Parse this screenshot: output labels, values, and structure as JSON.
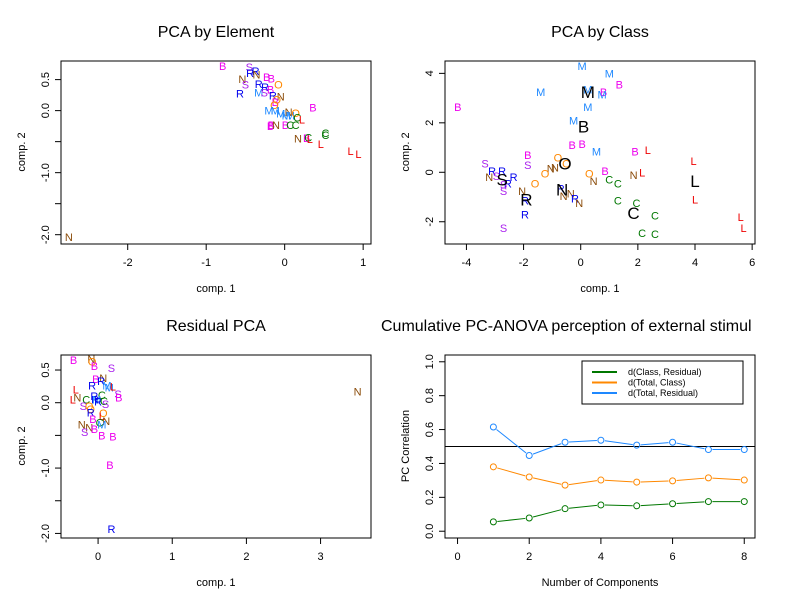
{
  "colors": {
    "B": "#ee00ee",
    "C": "#007700",
    "L": "#ee0000",
    "M": "#1e88ff",
    "N": "#8b4c0a",
    "O": "#ff8800",
    "R": "#0000ee",
    "S": "#aa22ee",
    "centroid": "#000000",
    "refline": "#000000"
  },
  "chart_data": [
    {
      "type": "scatter",
      "title": "PCA by Element",
      "xlabel": "comp. 1",
      "ylabel": "comp. 2",
      "xlim": [
        -2.85,
        1.1
      ],
      "ylim": [
        -2.15,
        0.8
      ],
      "xticks": [
        -2,
        -1,
        0,
        1
      ],
      "yticks": [
        0.5,
        0.0,
        -0.5,
        -1.0,
        -1.5,
        -2.0
      ],
      "ytick_labels": [
        "0.5",
        "0.0",
        "",
        "-1.0",
        "",
        "-2.0"
      ],
      "points": [
        {
          "label": "B",
          "x": -0.79,
          "y": 0.72
        },
        {
          "label": "S",
          "x": -0.45,
          "y": 0.7
        },
        {
          "label": "R",
          "x": -0.44,
          "y": 0.61
        },
        {
          "label": "R",
          "x": -0.37,
          "y": 0.64
        },
        {
          "label": "N",
          "x": -0.36,
          "y": 0.58
        },
        {
          "label": "N",
          "x": -0.54,
          "y": 0.51
        },
        {
          "label": "S",
          "x": -0.5,
          "y": 0.42
        },
        {
          "label": "R",
          "x": -0.57,
          "y": 0.28
        },
        {
          "label": "B",
          "x": -0.23,
          "y": 0.54
        },
        {
          "label": "B",
          "x": -0.17,
          "y": 0.52
        },
        {
          "label": "O",
          "x": -0.08,
          "y": 0.42
        },
        {
          "label": "R",
          "x": -0.33,
          "y": 0.43
        },
        {
          "label": "R",
          "x": -0.25,
          "y": 0.38
        },
        {
          "label": "M",
          "x": -0.33,
          "y": 0.29
        },
        {
          "label": "S",
          "x": -0.26,
          "y": 0.29
        },
        {
          "label": "B",
          "x": -0.18,
          "y": 0.34
        },
        {
          "label": "R",
          "x": -0.15,
          "y": 0.24
        },
        {
          "label": "N",
          "x": -0.05,
          "y": 0.23
        },
        {
          "label": "O",
          "x": -0.1,
          "y": 0.18
        },
        {
          "label": "B",
          "x": -0.12,
          "y": 0.14
        },
        {
          "label": "O",
          "x": -0.13,
          "y": 0.09
        },
        {
          "label": "M",
          "x": -0.2,
          "y": 0.0
        },
        {
          "label": "M",
          "x": -0.12,
          "y": 0.0
        },
        {
          "label": "M",
          "x": -0.05,
          "y": -0.05
        },
        {
          "label": "N",
          "x": 0.05,
          "y": -0.02
        },
        {
          "label": "M",
          "x": 0.02,
          "y": -0.08
        },
        {
          "label": "M",
          "x": 0.07,
          "y": -0.08
        },
        {
          "label": "O",
          "x": 0.14,
          "y": -0.04
        },
        {
          "label": "C",
          "x": 0.16,
          "y": -0.11
        },
        {
          "label": "L",
          "x": 0.22,
          "y": -0.14
        },
        {
          "label": "C",
          "x": 0.14,
          "y": -0.23
        },
        {
          "label": "B",
          "x": -0.17,
          "y": -0.23
        },
        {
          "label": "B",
          "x": -0.18,
          "y": -0.25
        },
        {
          "label": "N",
          "x": -0.11,
          "y": -0.23
        },
        {
          "label": "B",
          "x": 0.01,
          "y": -0.23
        },
        {
          "label": "C",
          "x": 0.07,
          "y": -0.23
        },
        {
          "label": "B",
          "x": 0.36,
          "y": 0.05
        },
        {
          "label": "N",
          "x": 0.17,
          "y": -0.45
        },
        {
          "label": "B",
          "x": 0.28,
          "y": -0.44
        },
        {
          "label": "C",
          "x": 0.3,
          "y": -0.43
        },
        {
          "label": "L",
          "x": 0.32,
          "y": -0.46
        },
        {
          "label": "L",
          "x": 0.46,
          "y": -0.54
        },
        {
          "label": "C",
          "x": 0.52,
          "y": -0.36
        },
        {
          "label": "C",
          "x": 0.52,
          "y": -0.39
        },
        {
          "label": "L",
          "x": 0.84,
          "y": -0.65
        },
        {
          "label": "L",
          "x": 0.94,
          "y": -0.7
        },
        {
          "label": "N",
          "x": -2.75,
          "y": -2.04
        }
      ]
    },
    {
      "type": "scatter",
      "title": "PCA by Class",
      "xlabel": "comp. 1",
      "ylabel": "comp. 2",
      "xlim": [
        -4.75,
        6.1
      ],
      "ylim": [
        -2.9,
        4.5
      ],
      "xticks": [
        -4,
        -2,
        0,
        2,
        4,
        6
      ],
      "yticks": [
        4,
        2,
        0,
        -2
      ],
      "points": [
        {
          "label": "M",
          "x": 0.05,
          "y": 4.3
        },
        {
          "label": "M",
          "x": 1.0,
          "y": 4.0
        },
        {
          "label": "B",
          "x": 1.35,
          "y": 3.55
        },
        {
          "label": "M",
          "x": -1.4,
          "y": 3.25
        },
        {
          "label": "M",
          "x": 0.25,
          "y": 3.35
        },
        {
          "label": "B",
          "x": 0.8,
          "y": 3.25
        },
        {
          "label": "M",
          "x": 0.75,
          "y": 3.15
        },
        {
          "label": "M",
          "x": 0.25,
          "y": 2.65
        },
        {
          "label": "M",
          "x": -0.25,
          "y": 2.1
        },
        {
          "label": "B",
          "x": -4.3,
          "y": 2.65
        },
        {
          "label": "B",
          "x": -0.3,
          "y": 1.1
        },
        {
          "label": "B",
          "x": 0.05,
          "y": 1.15
        },
        {
          "label": "M",
          "x": 0.55,
          "y": 0.85
        },
        {
          "label": "B",
          "x": 1.9,
          "y": 0.85
        },
        {
          "label": "L",
          "x": 2.35,
          "y": 0.9
        },
        {
          "label": "B",
          "x": -1.85,
          "y": 0.7
        },
        {
          "label": "S",
          "x": -1.85,
          "y": 0.3
        },
        {
          "label": "S",
          "x": -3.35,
          "y": 0.35
        },
        {
          "label": "R",
          "x": -3.1,
          "y": 0.05
        },
        {
          "label": "R",
          "x": -2.75,
          "y": 0.05
        },
        {
          "label": "N",
          "x": -3.2,
          "y": -0.2
        },
        {
          "label": "S",
          "x": -2.95,
          "y": -0.15
        },
        {
          "label": "R",
          "x": -2.35,
          "y": -0.2
        },
        {
          "label": "R",
          "x": -2.55,
          "y": -0.45
        },
        {
          "label": "S",
          "x": -2.7,
          "y": -0.5
        },
        {
          "label": "S",
          "x": -2.7,
          "y": -0.75
        },
        {
          "label": "O",
          "x": -0.8,
          "y": 0.6
        },
        {
          "label": "O",
          "x": -0.5,
          "y": 0.35
        },
        {
          "label": "N",
          "x": -1.05,
          "y": 0.15
        },
        {
          "label": "N",
          "x": -0.9,
          "y": 0.2
        },
        {
          "label": "O",
          "x": -1.25,
          "y": -0.05
        },
        {
          "label": "O",
          "x": -1.6,
          "y": -0.45
        },
        {
          "label": "N",
          "x": -2.05,
          "y": -0.75
        },
        {
          "label": "R",
          "x": -1.95,
          "y": -1.15
        },
        {
          "label": "R",
          "x": -1.95,
          "y": -1.7
        },
        {
          "label": "S",
          "x": -2.7,
          "y": -2.25
        },
        {
          "label": "R",
          "x": -0.7,
          "y": -0.65
        },
        {
          "label": "N",
          "x": -0.6,
          "y": -0.95
        },
        {
          "label": "N",
          "x": -0.35,
          "y": -0.85
        },
        {
          "label": "R",
          "x": -0.2,
          "y": -1.05
        },
        {
          "label": "N",
          "x": -0.05,
          "y": -1.25
        },
        {
          "label": "O",
          "x": 0.3,
          "y": -0.05
        },
        {
          "label": "N",
          "x": 0.45,
          "y": -0.35
        },
        {
          "label": "B",
          "x": 0.85,
          "y": 0.05
        },
        {
          "label": "C",
          "x": 1.0,
          "y": -0.3
        },
        {
          "label": "C",
          "x": 1.3,
          "y": -0.45
        },
        {
          "label": "N",
          "x": 1.85,
          "y": -0.1
        },
        {
          "label": "L",
          "x": 2.15,
          "y": 0.0
        },
        {
          "label": "C",
          "x": 1.3,
          "y": -1.15
        },
        {
          "label": "C",
          "x": 1.95,
          "y": -1.25
        },
        {
          "label": "C",
          "x": 2.6,
          "y": -1.75
        },
        {
          "label": "C",
          "x": 2.15,
          "y": -2.45
        },
        {
          "label": "C",
          "x": 2.6,
          "y": -2.5
        },
        {
          "label": "L",
          "x": 3.95,
          "y": 0.45
        },
        {
          "label": "L",
          "x": 4.0,
          "y": -1.1
        },
        {
          "label": "L",
          "x": 5.6,
          "y": -1.8
        },
        {
          "label": "L",
          "x": 5.7,
          "y": -2.25
        }
      ],
      "centroids": [
        {
          "label": "M",
          "x": 0.25,
          "y": 3.25
        },
        {
          "label": "B",
          "x": 0.1,
          "y": 1.85
        },
        {
          "label": "O",
          "x": -0.55,
          "y": 0.35
        },
        {
          "label": "S",
          "x": -2.75,
          "y": -0.3
        },
        {
          "label": "N",
          "x": -0.65,
          "y": -0.7
        },
        {
          "label": "R",
          "x": -1.9,
          "y": -1.1
        },
        {
          "label": "C",
          "x": 1.85,
          "y": -1.65
        },
        {
          "label": "L",
          "x": 4.0,
          "y": -0.35
        }
      ]
    },
    {
      "type": "scatter",
      "title": "Residual PCA",
      "xlabel": "comp. 1",
      "ylabel": "comp. 2",
      "xlim": [
        -0.5,
        3.68
      ],
      "ylim": [
        -2.07,
        0.73
      ],
      "xticks": [
        0,
        1,
        2,
        3
      ],
      "yticks": [
        0.5,
        0.0,
        -0.5,
        -1.0,
        -1.5,
        -2.0
      ],
      "ytick_labels": [
        "0.5",
        "0.0",
        "",
        "-1.0",
        "",
        "-2.0"
      ],
      "points": [
        {
          "label": "B",
          "x": -0.33,
          "y": 0.65
        },
        {
          "label": "N",
          "x": -0.09,
          "y": 0.67
        },
        {
          "label": "O",
          "x": -0.08,
          "y": 0.63
        },
        {
          "label": "B",
          "x": -0.05,
          "y": 0.56
        },
        {
          "label": "S",
          "x": 0.18,
          "y": 0.53
        },
        {
          "label": "B",
          "x": -0.03,
          "y": 0.36
        },
        {
          "label": "N",
          "x": 0.07,
          "y": 0.38
        },
        {
          "label": "R",
          "x": 0.04,
          "y": 0.33
        },
        {
          "label": "R",
          "x": -0.08,
          "y": 0.26
        },
        {
          "label": "M",
          "x": 0.12,
          "y": 0.26
        },
        {
          "label": "M",
          "x": 0.15,
          "y": 0.23
        },
        {
          "label": "L",
          "x": 0.2,
          "y": 0.25
        },
        {
          "label": "L",
          "x": -0.3,
          "y": 0.2
        },
        {
          "label": "S",
          "x": 0.27,
          "y": 0.13
        },
        {
          "label": "B",
          "x": 0.28,
          "y": 0.08
        },
        {
          "label": "N",
          "x": -0.28,
          "y": 0.08
        },
        {
          "label": "C",
          "x": -0.16,
          "y": 0.05
        },
        {
          "label": "C",
          "x": 0.05,
          "y": 0.12
        },
        {
          "label": "R",
          "x": -0.05,
          "y": 0.1
        },
        {
          "label": "R",
          "x": -0.04,
          "y": 0.05
        },
        {
          "label": "M",
          "x": -0.02,
          "y": 0.05
        },
        {
          "label": "R",
          "x": 0.0,
          "y": 0.02
        },
        {
          "label": "C",
          "x": 0.08,
          "y": 0.03
        },
        {
          "label": "L",
          "x": -0.34,
          "y": 0.05
        },
        {
          "label": "S",
          "x": -0.2,
          "y": -0.05
        },
        {
          "label": "O",
          "x": -0.12,
          "y": -0.05
        },
        {
          "label": "O",
          "x": -0.1,
          "y": -0.1
        },
        {
          "label": "S",
          "x": 0.1,
          "y": -0.02
        },
        {
          "label": "R",
          "x": -0.1,
          "y": -0.15
        },
        {
          "label": "O",
          "x": 0.07,
          "y": -0.16
        },
        {
          "label": "L",
          "x": 0.05,
          "y": -0.2
        },
        {
          "label": "B",
          "x": -0.07,
          "y": -0.25
        },
        {
          "label": "N",
          "x": 0.11,
          "y": -0.28
        },
        {
          "label": "C",
          "x": 0.02,
          "y": -0.3
        },
        {
          "label": "M",
          "x": 0.05,
          "y": -0.33
        },
        {
          "label": "N",
          "x": -0.22,
          "y": -0.33
        },
        {
          "label": "N",
          "x": -0.12,
          "y": -0.38
        },
        {
          "label": "B",
          "x": -0.05,
          "y": -0.4
        },
        {
          "label": "S",
          "x": -0.18,
          "y": -0.45
        },
        {
          "label": "B",
          "x": 0.05,
          "y": -0.5
        },
        {
          "label": "B",
          "x": 0.2,
          "y": -0.52
        },
        {
          "label": "B",
          "x": 0.16,
          "y": -0.95
        },
        {
          "label": "R",
          "x": 0.18,
          "y": -1.93
        },
        {
          "label": "N",
          "x": 3.5,
          "y": 0.17
        }
      ]
    },
    {
      "type": "line",
      "title": "Cumulative PC-ANOVA perception of external stimul",
      "xlabel": "Number of Components",
      "ylabel": "PC Correlation",
      "xlim": [
        -0.35,
        8.3
      ],
      "ylim": [
        -0.04,
        1.04
      ],
      "xticks": [
        0,
        2,
        4,
        6,
        8
      ],
      "yticks": [
        0.0,
        0.2,
        0.4,
        0.6,
        0.8,
        1.0
      ],
      "ytick_labels": [
        "0.0",
        "0.2",
        "0.4",
        "0.6",
        "0.8",
        "1.0"
      ],
      "hline": 0.5,
      "x": [
        1,
        2,
        3,
        4,
        5,
        6,
        7,
        8
      ],
      "series": [
        {
          "name": "d(Class, Residual)",
          "key": "C",
          "values": [
            0.055,
            0.078,
            0.133,
            0.155,
            0.15,
            0.162,
            0.175,
            0.175
          ]
        },
        {
          "name": "d(Total, Class)",
          "key": "O",
          "values": [
            0.38,
            0.32,
            0.272,
            0.302,
            0.29,
            0.297,
            0.315,
            0.302
          ]
        },
        {
          "name": "d(Total, Residual)",
          "key": "M",
          "values": [
            0.615,
            0.447,
            0.525,
            0.537,
            0.508,
            0.525,
            0.482,
            0.482
          ]
        }
      ],
      "legend_position": "top-right"
    }
  ]
}
